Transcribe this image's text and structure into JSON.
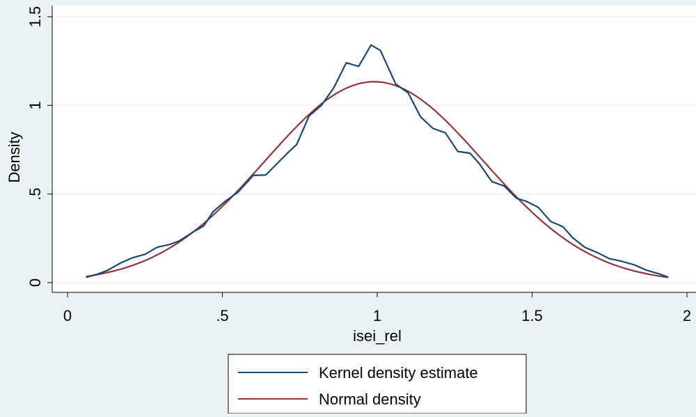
{
  "chart_data": {
    "type": "line",
    "title": "",
    "xlabel": "isei_rel",
    "ylabel": "Density",
    "xlim": [
      0,
      2
    ],
    "ylim": [
      0,
      1.5
    ],
    "x_ticks": [
      {
        "value": 0,
        "label": "0"
      },
      {
        "value": 0.5,
        "label": ".5"
      },
      {
        "value": 1,
        "label": "1"
      },
      {
        "value": 1.5,
        "label": "1.5"
      },
      {
        "value": 2,
        "label": "2"
      }
    ],
    "y_ticks": [
      {
        "value": 0,
        "label": "0"
      },
      {
        "value": 0.5,
        "label": ".5"
      },
      {
        "value": 1,
        "label": "1"
      },
      {
        "value": 1.5,
        "label": "1.5"
      }
    ],
    "grid": "horizontal",
    "legend_position": "bottom",
    "series": [
      {
        "name": "Kernel density estimate",
        "color": "#1a476f",
        "points": [
          [
            0.06,
            0.03
          ],
          [
            0.1,
            0.05
          ],
          [
            0.13,
            0.07
          ],
          [
            0.17,
            0.11
          ],
          [
            0.21,
            0.14
          ],
          [
            0.25,
            0.16
          ],
          [
            0.29,
            0.2
          ],
          [
            0.33,
            0.215
          ],
          [
            0.36,
            0.235
          ],
          [
            0.41,
            0.29
          ],
          [
            0.44,
            0.32
          ],
          [
            0.47,
            0.4
          ],
          [
            0.51,
            0.46
          ],
          [
            0.55,
            0.51
          ],
          [
            0.6,
            0.605
          ],
          [
            0.64,
            0.607
          ],
          [
            0.67,
            0.66
          ],
          [
            0.71,
            0.73
          ],
          [
            0.74,
            0.78
          ],
          [
            0.78,
            0.94
          ],
          [
            0.82,
            1.0
          ],
          [
            0.86,
            1.1
          ],
          [
            0.9,
            1.24
          ],
          [
            0.94,
            1.22
          ],
          [
            0.98,
            1.34
          ],
          [
            1.01,
            1.31
          ],
          [
            1.06,
            1.12
          ],
          [
            1.1,
            1.07
          ],
          [
            1.14,
            0.935
          ],
          [
            1.18,
            0.87
          ],
          [
            1.22,
            0.845
          ],
          [
            1.26,
            0.74
          ],
          [
            1.3,
            0.73
          ],
          [
            1.33,
            0.67
          ],
          [
            1.37,
            0.57
          ],
          [
            1.41,
            0.545
          ],
          [
            1.45,
            0.475
          ],
          [
            1.48,
            0.46
          ],
          [
            1.52,
            0.425
          ],
          [
            1.56,
            0.345
          ],
          [
            1.6,
            0.315
          ],
          [
            1.63,
            0.255
          ],
          [
            1.67,
            0.2
          ],
          [
            1.71,
            0.17
          ],
          [
            1.75,
            0.135
          ],
          [
            1.79,
            0.12
          ],
          [
            1.83,
            0.1
          ],
          [
            1.87,
            0.07
          ],
          [
            1.91,
            0.05
          ],
          [
            1.94,
            0.03
          ]
        ]
      },
      {
        "name": "Normal density",
        "color": "#90353b",
        "distribution": {
          "mean": 0.99,
          "sd": 0.352
        },
        "x_range": [
          0.06,
          1.94
        ]
      }
    ]
  }
}
